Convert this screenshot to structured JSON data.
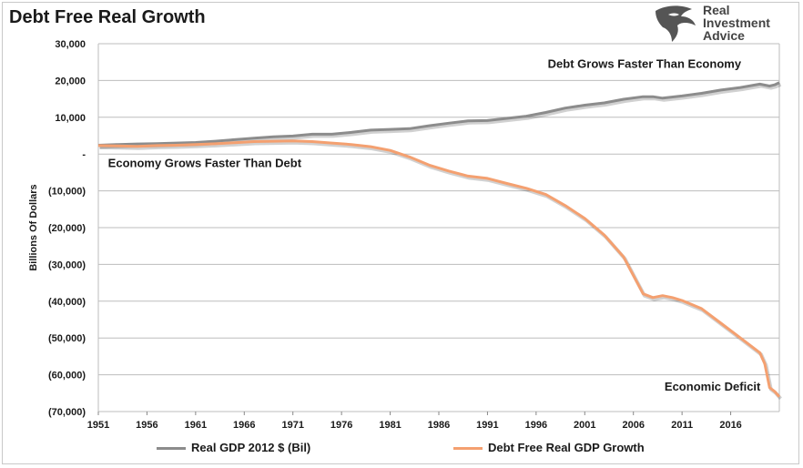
{
  "chart_data": {
    "type": "line",
    "title": "Debt Free Real Growth",
    "ylabel": "Billions Of Dollars",
    "xlim": [
      1951,
      2021
    ],
    "ylim": [
      -70000,
      30000
    ],
    "x_ticks": [
      "1951",
      "1956",
      "1961",
      "1966",
      "1971",
      "1976",
      "1981",
      "1986",
      "1991",
      "1996",
      "2001",
      "2006",
      "2011",
      "2016"
    ],
    "y_ticks": [
      {
        "value": 30000,
        "label": "30,000"
      },
      {
        "value": 20000,
        "label": "20,000"
      },
      {
        "value": 10000,
        "label": "10,000"
      },
      {
        "value": 0,
        "label": "-"
      },
      {
        "value": -10000,
        "label": "(10,000)"
      },
      {
        "value": -20000,
        "label": "(20,000)"
      },
      {
        "value": -30000,
        "label": "(30,000)"
      },
      {
        "value": -40000,
        "label": "(40,000)"
      },
      {
        "value": -50000,
        "label": "(50,000)"
      },
      {
        "value": -60000,
        "label": "(60,000)"
      },
      {
        "value": -70000,
        "label": "(70,000)"
      }
    ],
    "grid": true,
    "legend_position": "bottom",
    "series": [
      {
        "name": "Real GDP 2012 $ (Bil)",
        "color": "#8c8c8c",
        "x": [
          1951,
          1953,
          1955,
          1957,
          1959,
          1961,
          1963,
          1965,
          1967,
          1969,
          1971,
          1973,
          1975,
          1977,
          1979,
          1981,
          1983,
          1985,
          1987,
          1989,
          1991,
          1993,
          1995,
          1997,
          1999,
          2001,
          2003,
          2005,
          2007,
          2008,
          2009,
          2011,
          2013,
          2015,
          2017,
          2019,
          2020,
          2020.5,
          2021
        ],
        "values": [
          2400,
          2600,
          2750,
          2850,
          3000,
          3150,
          3500,
          3900,
          4300,
          4700,
          4900,
          5400,
          5400,
          5900,
          6500,
          6700,
          6900,
          7700,
          8400,
          9000,
          9100,
          9700,
          10300,
          11300,
          12500,
          13300,
          13900,
          14900,
          15600,
          15600,
          15200,
          15800,
          16500,
          17400,
          18100,
          19000,
          18500,
          18800,
          19400
        ]
      },
      {
        "name": "Debt Free Real GDP Growth",
        "color": "#f4a070",
        "x": [
          1951,
          1953,
          1955,
          1957,
          1959,
          1961,
          1963,
          1965,
          1967,
          1969,
          1971,
          1973,
          1975,
          1977,
          1979,
          1981,
          1983,
          1985,
          1987,
          1989,
          1991,
          1993,
          1995,
          1997,
          1999,
          2001,
          2003,
          2005,
          2006,
          2007,
          2008,
          2009,
          2010,
          2011,
          2013,
          2015,
          2017,
          2019,
          2019.5,
          2020,
          2020.5,
          2021
        ],
        "values": [
          2300,
          2200,
          2100,
          2300,
          2400,
          2600,
          2800,
          3100,
          3400,
          3500,
          3600,
          3400,
          3000,
          2600,
          2000,
          1000,
          -800,
          -3000,
          -4600,
          -6000,
          -6600,
          -8000,
          -9300,
          -11000,
          -14000,
          -17500,
          -22000,
          -28000,
          -33000,
          -38000,
          -39000,
          -38500,
          -39000,
          -39800,
          -42000,
          -46000,
          -50000,
          -54000,
          -57000,
          -63500,
          -64500,
          -66000
        ]
      }
    ],
    "annotations": [
      {
        "text": "Debt Grows Faster Than Economy",
        "x": 1997.2,
        "y": 23500
      },
      {
        "text": "Economy Grows Faster Than Debt",
        "x": 1952,
        "y": -3500
      },
      {
        "text": "Economic Deficit",
        "x": 2009.2,
        "y": -64300
      }
    ]
  },
  "logo": {
    "text": "Real\nInvestment\nAdvice",
    "color": "#444444"
  }
}
